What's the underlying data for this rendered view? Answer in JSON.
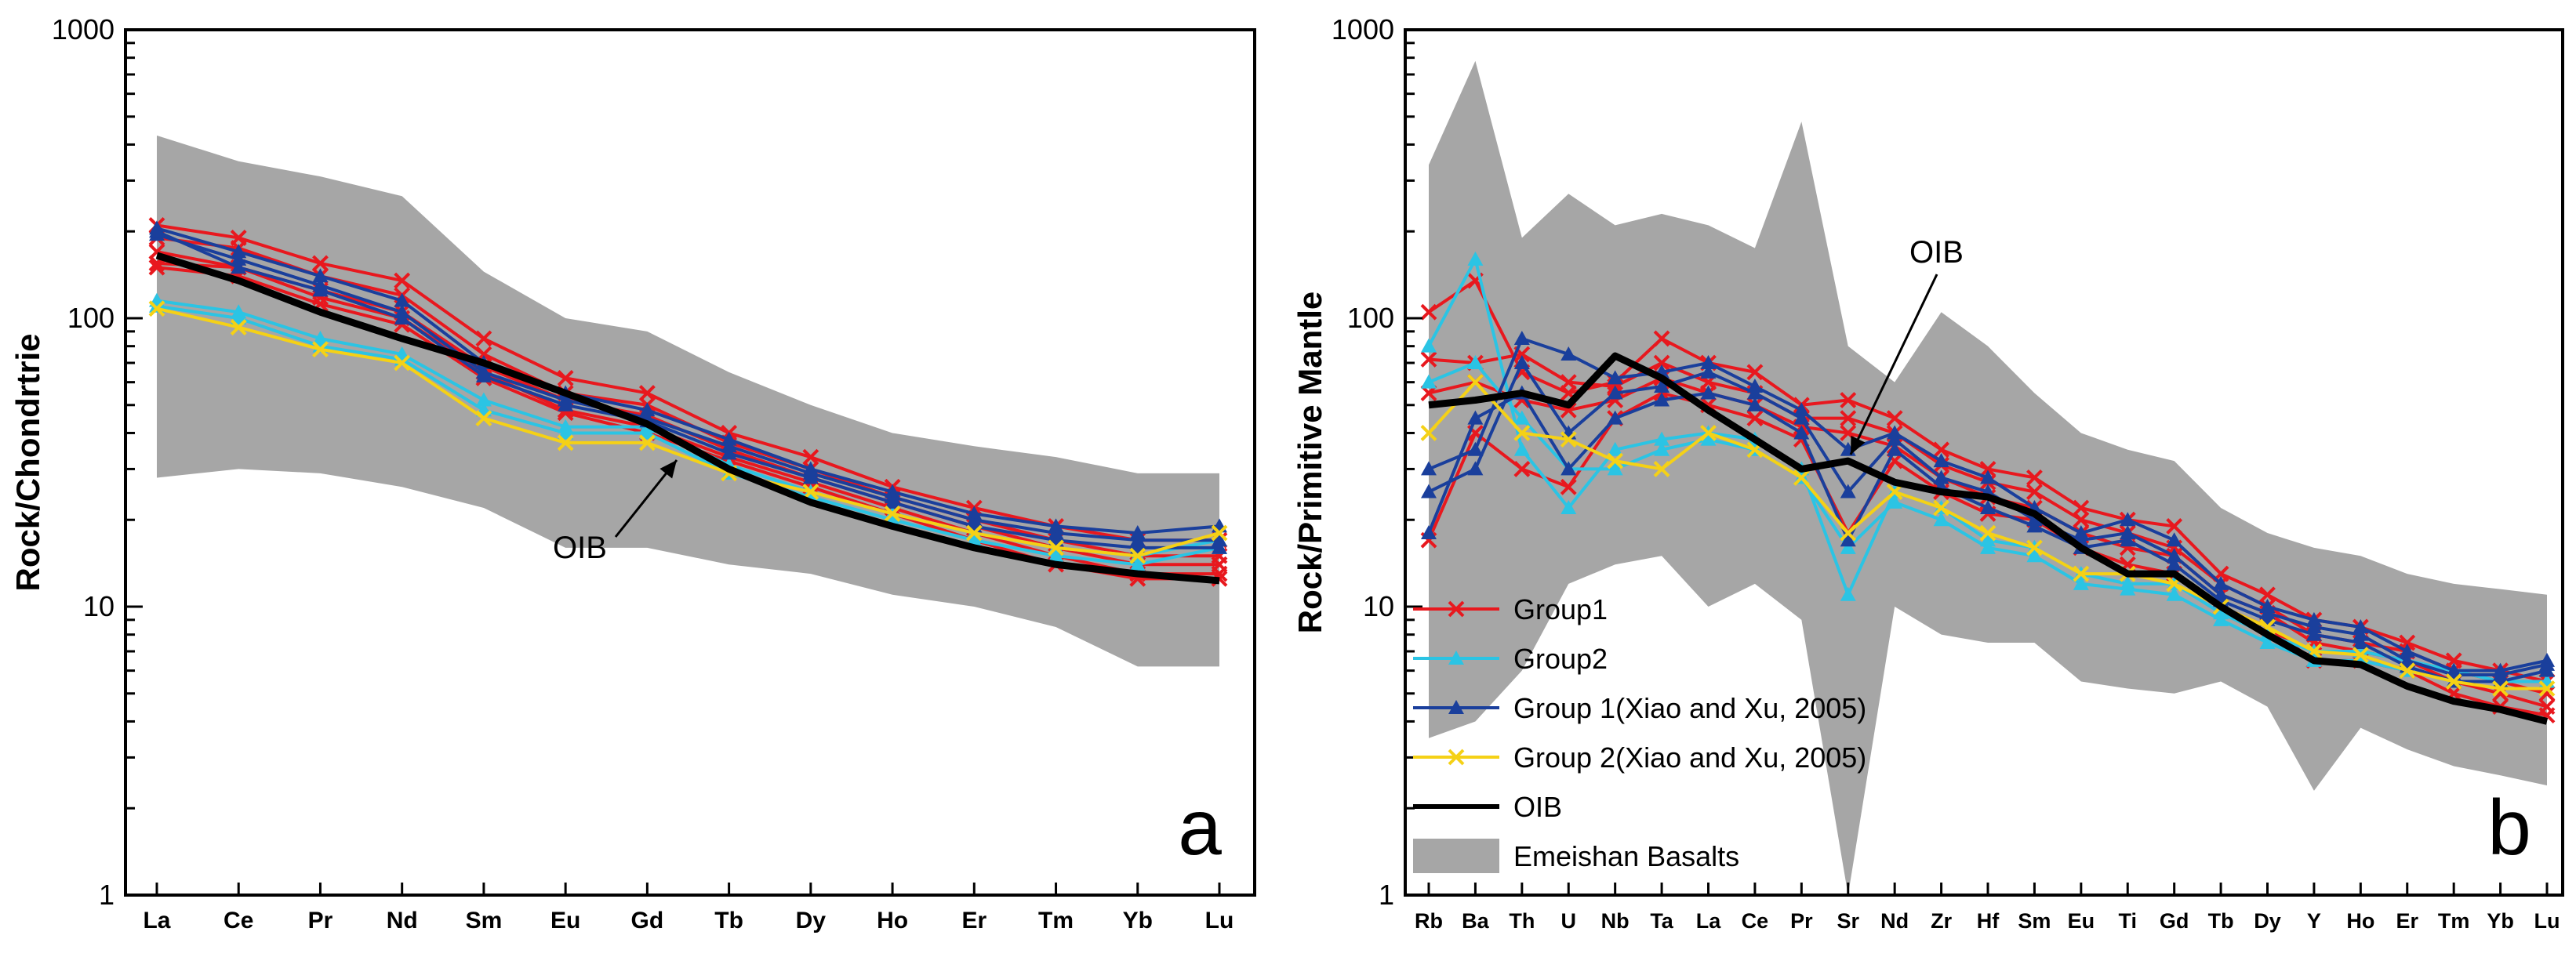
{
  "chart_data": [
    {
      "id": "a",
      "type": "line",
      "yscale": "log",
      "ylim": [
        1,
        1000
      ],
      "yticks": [
        "1",
        "10",
        "100",
        "1000"
      ],
      "ylabel": "Rock/Chondrtrie",
      "panel_label": "a",
      "annotation": "OIB",
      "categories": [
        "La",
        "Ce",
        "Pr",
        "Nd",
        "Sm",
        "Eu",
        "Gd",
        "Tb",
        "Dy",
        "Ho",
        "Er",
        "Tm",
        "Yb",
        "Lu"
      ],
      "band": {
        "name": "Emeishan Basalts",
        "upper": [
          430,
          350,
          310,
          265,
          145,
          100,
          90,
          65,
          50,
          40,
          36,
          33,
          29,
          29
        ],
        "lower": [
          28,
          30,
          29,
          26,
          22,
          16,
          16,
          14,
          13,
          11,
          10,
          8.5,
          6.2,
          6.2
        ]
      },
      "series": [
        {
          "name": "Group1",
          "color": "#e8181e",
          "marker": "x",
          "lines": [
            [
              210,
              190,
              155,
              135,
              85,
              62,
              55,
              40,
              33,
              26,
              22,
              19,
              17,
              17
            ],
            [
              190,
              175,
              140,
              120,
              75,
              55,
              50,
              37,
              30,
              24,
              20,
              17,
              15,
              15
            ],
            [
              170,
              150,
              125,
              105,
              68,
              52,
              46,
              35,
              28,
              23,
              19,
              16,
              14,
              14
            ],
            [
              155,
              150,
              118,
              100,
              65,
              48,
              42,
              33,
              27,
              22,
              18,
              15,
              13,
              13
            ],
            [
              150,
              140,
              112,
              95,
              62,
              47,
              40,
              32,
              26,
              21,
              17,
              14,
              12.5,
              12.5
            ]
          ]
        },
        {
          "name": "Group2",
          "color": "#2bc4e4",
          "marker": "triangle",
          "lines": [
            [
              115,
              105,
              85,
              75,
              52,
              42,
              42,
              31,
              25,
              21,
              18,
              16,
              15,
              17
            ],
            [
              110,
              100,
              80,
              72,
              48,
              40,
              40,
              29,
              24,
              20,
              17,
              15,
              14,
              16
            ]
          ]
        },
        {
          "name": "Group 1(Xiao and Xu,  2005)",
          "color": "#1a3f9c",
          "marker": "triangle",
          "lines": [
            [
              205,
              170,
              140,
              115,
              70,
              55,
              48,
              38,
              30,
              25,
              21,
              19,
              18,
              19
            ],
            [
              195,
              160,
              130,
              105,
              65,
              52,
              45,
              36,
              29,
              24,
              20,
              18,
              17,
              17
            ],
            [
              200,
              150,
              125,
              100,
              63,
              50,
              44,
              34,
              28,
              23,
              19,
              17,
              16,
              16
            ]
          ]
        },
        {
          "name": "Group 2(Xiao and Xu,  2005)",
          "color": "#f5d116",
          "marker": "x",
          "lines": [
            [
              108,
              93,
              78,
              70,
              45,
              37,
              37,
              29,
              25,
              21,
              18,
              16,
              15,
              18
            ]
          ]
        },
        {
          "name": "OIB",
          "color": "#000000",
          "marker": "none",
          "lines": [
            [
              165,
              135,
              105,
              85,
              70,
              55,
              43,
              30,
              23,
              19,
              16,
              14,
              13,
              12.3
            ]
          ]
        }
      ]
    },
    {
      "id": "b",
      "type": "line",
      "yscale": "log",
      "ylim": [
        1,
        1000
      ],
      "yticks": [
        "1",
        "10",
        "100",
        "1000"
      ],
      "ylabel": "Rock/Primitive Mantle",
      "panel_label": "b",
      "annotation": "OIB",
      "categories": [
        "Rb",
        "Ba",
        "Th",
        "U",
        "Nb",
        "Ta",
        "La",
        "Ce",
        "Pr",
        "Sr",
        "Nd",
        "Zr",
        "Hf",
        "Sm",
        "Eu",
        "Ti",
        "Gd",
        "Tb",
        "Dy",
        "Y",
        "Ho",
        "Er",
        "Tm",
        "Yb",
        "Lu"
      ],
      "band": {
        "name": "Emeishan Basalts",
        "upper": [
          340,
          780,
          190,
          270,
          210,
          230,
          210,
          175,
          480,
          80,
          60,
          105,
          80,
          55,
          40,
          35,
          32,
          22,
          18,
          16,
          15,
          13,
          12,
          11.5,
          11
        ],
        "lower": [
          3.5,
          4,
          6,
          12,
          14,
          15,
          10,
          12,
          9,
          1,
          10,
          8,
          7.5,
          7.5,
          5.5,
          5.2,
          5,
          5.5,
          4.5,
          2.3,
          3.8,
          3.2,
          2.8,
          2.6,
          2.4
        ]
      },
      "series": [
        {
          "name": "Group1",
          "color": "#e8181e",
          "marker": "x",
          "lines": [
            [
              105,
              135,
              65,
              55,
              60,
              85,
              70,
              65,
              50,
              52,
              45,
              35,
              30,
              28,
              22,
              20,
              19,
              13,
              11,
              9,
              8.5,
              7.5,
              6.5,
              6,
              5.5
            ],
            [
              72,
              70,
              75,
              60,
              58,
              70,
              60,
              55,
              45,
              45,
              40,
              31,
              27,
              25,
              20,
              18,
              16,
              12,
              10,
              8,
              7.5,
              7,
              6,
              5.5,
              5
            ],
            [
              55,
              60,
              52,
              48,
              52,
              62,
              55,
              50,
              42,
              40,
              36,
              28,
              24,
              22,
              18,
              16,
              15,
              11,
              9.5,
              7.5,
              7,
              6.5,
              5.5,
              5,
              4.5
            ],
            [
              17,
              40,
              30,
              26,
              45,
              55,
              50,
              45,
              38,
              18,
              32,
              25,
              21,
              20,
              16,
              14,
              13,
              10,
              8.5,
              6.5,
              6.5,
              6,
              5,
              4.5,
              4.2
            ]
          ]
        },
        {
          "name": "Group2",
          "color": "#2bc4e4",
          "marker": "triangle",
          "lines": [
            [
              80,
              160,
              35,
              22,
              35,
              38,
              40,
              38,
              30,
              11,
              25,
              22,
              17,
              16,
              13,
              12,
              12,
              9.5,
              8,
              7,
              7,
              6.5,
              6,
              5.5,
              6
            ],
            [
              60,
              70,
              45,
              30,
              30,
              35,
              38,
              35,
              28,
              16,
              23,
              20,
              16,
              15,
              12,
              11.5,
              11,
              9,
              7.5,
              6.5,
              6.5,
              6,
              5.5,
              5.5,
              5.5
            ]
          ]
        },
        {
          "name": "Group 1(Xiao and Xu,  2005)",
          "color": "#1a3f9c",
          "marker": "triangle",
          "lines": [
            [
              30,
              35,
              85,
              75,
              62,
              65,
              70,
              58,
              48,
              35,
              40,
              32,
              28,
              22,
              18,
              20,
              17,
              12,
              10,
              9,
              8.5,
              7,
              6,
              6,
              6.5
            ],
            [
              25,
              30,
              70,
              40,
              55,
              58,
              65,
              55,
              45,
              25,
              38,
              28,
              25,
              20,
              17,
              18,
              15,
              11,
              9.5,
              8.5,
              8,
              6.5,
              5.8,
              5.8,
              6.3
            ],
            [
              18,
              45,
              55,
              30,
              45,
              52,
              55,
              50,
              40,
              17,
              35,
              26,
              22,
              19,
              16,
              17,
              14,
              10.5,
              9,
              8,
              7.5,
              6.2,
              5.5,
              5.5,
              6
            ]
          ]
        },
        {
          "name": "Group 2(Xiao and Xu,  2005)",
          "color": "#f5d116",
          "marker": "x",
          "lines": [
            [
              40,
              60,
              40,
              38,
              32,
              30,
              40,
              35,
              28,
              18,
              25,
              22,
              18,
              16,
              13,
              13,
              12,
              10,
              8.5,
              7,
              6.8,
              6,
              5.5,
              5.2,
              5.2
            ]
          ]
        },
        {
          "name": "OIB",
          "color": "#000000",
          "marker": "none",
          "lines": [
            [
              50,
              52,
              55,
              50,
              74,
              62,
              48,
              38,
              30,
              32,
              27,
              25,
              24,
              21,
              16,
              13,
              13,
              10,
              8,
              6.5,
              6.3,
              5.3,
              4.7,
              4.4,
              4
            ]
          ]
        }
      ],
      "legend": {
        "placement": "bottom-left",
        "entries": [
          {
            "label": "Group1",
            "color": "#e8181e",
            "kind": "x"
          },
          {
            "label": "Group2",
            "color": "#2bc4e4",
            "kind": "triangle"
          },
          {
            "label": "Group 1(Xiao and Xu,  2005)",
            "color": "#1a3f9c",
            "kind": "triangle"
          },
          {
            "label": "Group 2(Xiao and Xu,  2005)",
            "color": "#f5d116",
            "kind": "x"
          },
          {
            "label": "OIB",
            "color": "#000000",
            "kind": "line"
          },
          {
            "label": "Emeishan Basalts",
            "color": "#a6a6a6",
            "kind": "patch"
          }
        ]
      }
    }
  ],
  "colors": {
    "band": "#a6a6a6",
    "axis": "#000000"
  }
}
